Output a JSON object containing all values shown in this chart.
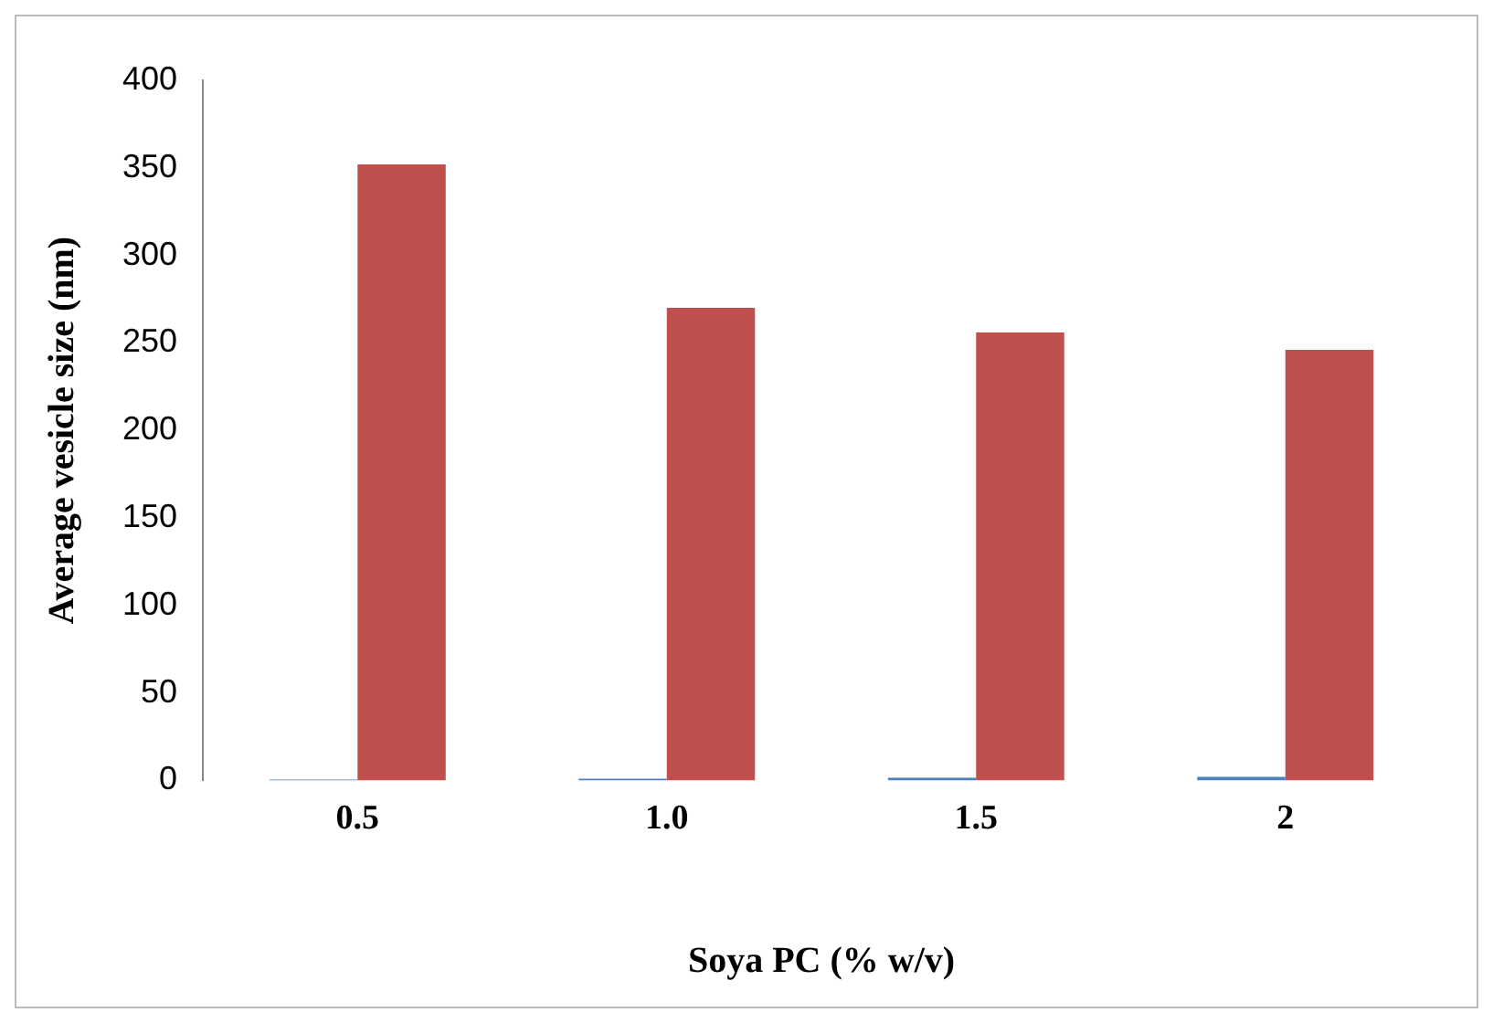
{
  "chart_data": {
    "type": "bar",
    "xlabel": "Soya PC (% w/v)",
    "ylabel": "Average vesicle size (nm)",
    "categories": [
      "0.5",
      "1.0",
      "1.5",
      "2"
    ],
    "series": [
      {
        "color": "#4f81bd",
        "values": [
          0.5,
          1.0,
          1.5,
          2
        ]
      },
      {
        "color": "#c0504d",
        "values": [
          352,
          270,
          256,
          246
        ]
      }
    ],
    "ylim": [
      0,
      400
    ],
    "yticks": [
      0,
      50,
      100,
      150,
      200,
      250,
      300,
      350,
      400
    ],
    "grid": false,
    "legend": false
  }
}
